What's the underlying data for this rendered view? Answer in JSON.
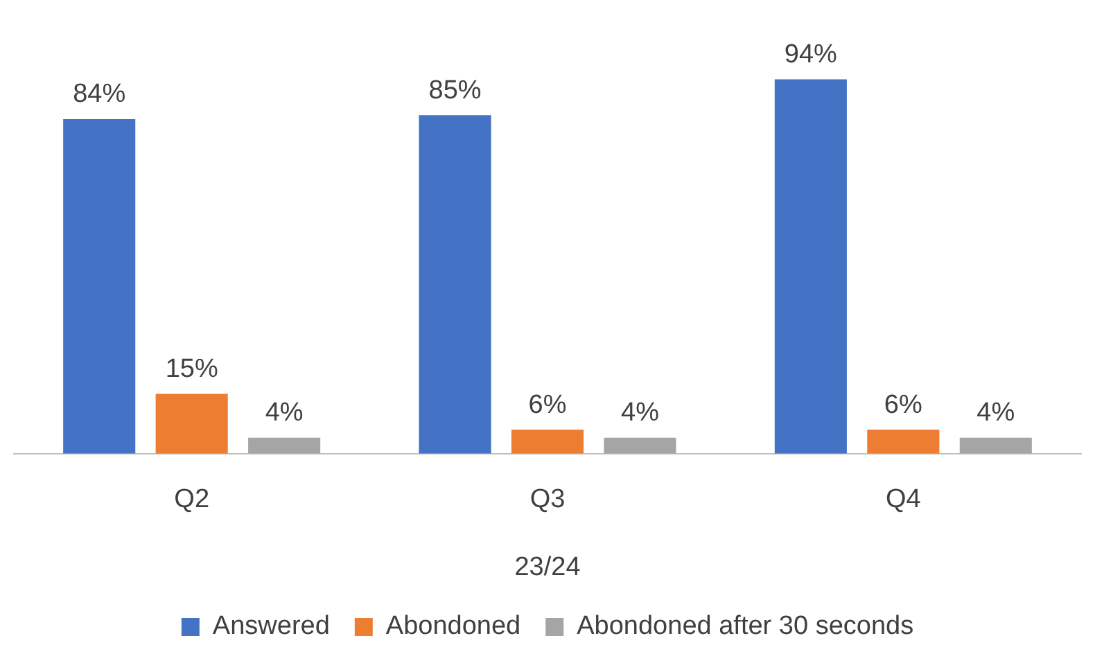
{
  "chart_data": {
    "type": "bar",
    "categories": [
      "Q2",
      "Q3",
      "Q4"
    ],
    "xlabel": "23/24",
    "series": [
      {
        "name": "Answered",
        "color": "#4472c4",
        "values": [
          84,
          85,
          94
        ],
        "value_labels": [
          "84%",
          "85%",
          "94%"
        ]
      },
      {
        "name": "Abondoned",
        "color": "#ed7d31",
        "values": [
          15,
          6,
          6
        ],
        "value_labels": [
          "15%",
          "6%",
          "6%"
        ]
      },
      {
        "name": "Abondoned after 30 seconds",
        "color": "#a5a5a5",
        "values": [
          4,
          4,
          4
        ],
        "value_labels": [
          "4%",
          "4%",
          "4%"
        ]
      }
    ],
    "grid": false,
    "legend": "bottom"
  }
}
